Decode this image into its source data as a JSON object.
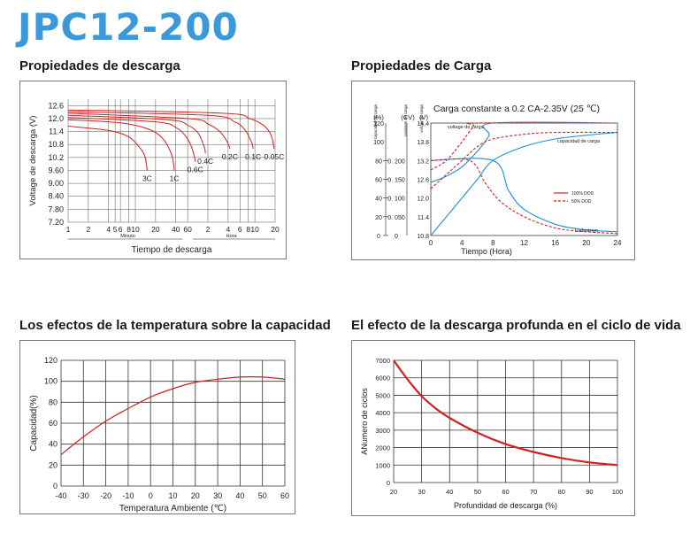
{
  "page": {
    "title": "JPC12-200"
  },
  "headings": {
    "discharge": "Propiedades de descarga",
    "charge": "Propiedades de Carga",
    "temperature": "Los efectos de la temperatura sobre la capacidad",
    "cycle": "El efecto de la descarga profunda en el ciclo de vida"
  },
  "colors": {
    "title": "#3a9ad9",
    "red": "#d42020",
    "blue": "#1f8fd0",
    "grid": "#333333"
  },
  "chart_data": [
    {
      "id": "discharge",
      "type": "line",
      "title": "Propiedades de descarga",
      "ylabel": "Voltage de descarga (V)",
      "xlabel": "Tiempo de descarga",
      "xunit_minutes": "Minuto",
      "xunit_hours": "Hora",
      "yticks": [
        "12.6",
        "12.0",
        "11.4",
        "10.8",
        "10.2",
        "9.60",
        "9.00",
        "8.40",
        "7.80",
        "7.20"
      ],
      "ylim": [
        7.2,
        12.9
      ],
      "xticks": [
        "1",
        "2",
        "4",
        "5",
        "6",
        "8",
        "10",
        "20",
        "40",
        "60",
        "2",
        "4",
        "6",
        "8",
        "10",
        "20"
      ],
      "series": [
        {
          "name": "3C",
          "label": "3C",
          "points": [
            [
              1,
              11.65
            ],
            [
              4,
              11.45
            ],
            [
              8,
              11.15
            ],
            [
              12,
              10.6
            ],
            [
              14,
              10.2
            ],
            [
              15,
              9.6
            ]
          ]
        },
        {
          "name": "1C",
          "label": "1C",
          "points": [
            [
              1,
              11.95
            ],
            [
              6,
              11.8
            ],
            [
              16,
              11.5
            ],
            [
              26,
              11.05
            ],
            [
              34,
              10.4
            ],
            [
              37,
              9.9
            ],
            [
              38,
              9.6
            ]
          ]
        },
        {
          "name": "0.6C",
          "label": "0.6C",
          "points": [
            [
              1,
              12.05
            ],
            [
              20,
              11.85
            ],
            [
              42,
              11.55
            ],
            [
              60,
              11.05
            ],
            [
              70,
              10.6
            ],
            [
              76,
              10.2
            ],
            [
              78,
              10.0
            ]
          ]
        },
        {
          "name": "0.4C",
          "label": "0.4C",
          "points": [
            [
              1,
              12.15
            ],
            [
              30,
              11.95
            ],
            [
              60,
              11.7
            ],
            [
              85,
              11.35
            ],
            [
              100,
              10.9
            ],
            [
              108,
              10.6
            ],
            [
              110,
              10.4
            ]
          ]
        },
        {
          "name": "0.2C",
          "label": "0.2C",
          "points": [
            [
              1,
              12.25
            ],
            [
              60,
              12.0
            ],
            [
              120,
              11.75
            ],
            [
              180,
              11.4
            ],
            [
              225,
              11.0
            ],
            [
              250,
              10.7
            ],
            [
              255,
              10.6
            ]
          ]
        },
        {
          "name": "0.1C",
          "label": "0.1C",
          "points": [
            [
              1,
              12.32
            ],
            [
              120,
              12.15
            ],
            [
              300,
              11.85
            ],
            [
              420,
              11.5
            ],
            [
              500,
              11.1
            ],
            [
              550,
              10.8
            ],
            [
              565,
              10.6
            ]
          ]
        },
        {
          "name": "0.05C",
          "label": "0.05C",
          "points": [
            [
              1,
              12.4
            ],
            [
              200,
              12.25
            ],
            [
              500,
              12.0
            ],
            [
              800,
              11.7
            ],
            [
              1000,
              11.35
            ],
            [
              1100,
              11.0
            ],
            [
              1160,
              10.6
            ]
          ]
        }
      ]
    },
    {
      "id": "charge",
      "type": "line",
      "title": "Carga constante a 0.2 CA-2.35V (25 ℃)",
      "xlabel": "Tiempo (Hora)",
      "xticks": [
        "0",
        "4",
        "8",
        "12",
        "16",
        "20",
        "24"
      ],
      "xlim": [
        0,
        24
      ],
      "axis_headers": [
        "capacidad de carga",
        "corriente de carga",
        "voltaje de carga"
      ],
      "axis_units": [
        "(%)",
        "(CV)",
        "(V)"
      ],
      "capacity_ticks": [
        "120",
        "100",
        "80",
        "60",
        "40",
        "20",
        "0"
      ],
      "current_ticks": [
        "0. 200",
        "0. 150",
        "0. 100",
        "0. 050",
        "0"
      ],
      "voltage_ticks": [
        "14.4",
        "13.8",
        "13.2",
        "12.6",
        "12.0",
        "11.4",
        "10.8"
      ],
      "annotations": {
        "voltage": "voltage de carga",
        "capacity": "capacidad de carga",
        "current": "Ladestrom"
      },
      "legend": [
        "100% DOD",
        "50% DOD"
      ],
      "series": [
        {
          "name": "voltaje 100% DOD",
          "style": "solid",
          "points": [
            [
              0,
              12.5
            ],
            [
              2,
              12.7
            ],
            [
              4,
              13.0
            ],
            [
              6,
              13.5
            ],
            [
              7.5,
              14.0
            ],
            [
              8,
              14.4
            ],
            [
              24,
              14.4
            ]
          ]
        },
        {
          "name": "voltaje 50% DOD",
          "style": "dashed",
          "points": [
            [
              0,
              12.9
            ],
            [
              2,
              13.2
            ],
            [
              4,
              13.8
            ],
            [
              5.5,
              14.3
            ],
            [
              6,
              14.4
            ],
            [
              24,
              14.4
            ]
          ]
        },
        {
          "name": "capacidad 100% DOD",
          "style": "solid",
          "points": [
            [
              0,
              0
            ],
            [
              2,
              20
            ],
            [
              4,
              40
            ],
            [
              6,
              60
            ],
            [
              8,
              80
            ],
            [
              12,
              95
            ],
            [
              16,
              103
            ],
            [
              20,
              107
            ],
            [
              24,
              110
            ]
          ]
        },
        {
          "name": "capacidad 50% DOD",
          "style": "dashed",
          "points": [
            [
              0,
              50
            ],
            [
              2,
              65
            ],
            [
              4,
              80
            ],
            [
              6,
              95
            ],
            [
              8,
              103
            ],
            [
              12,
              108
            ],
            [
              16,
              110
            ],
            [
              24,
              110
            ]
          ]
        },
        {
          "name": "corriente 100% DOD",
          "style": "solid",
          "points": [
            [
              0,
              0.2
            ],
            [
              8,
              0.2
            ],
            [
              10,
              0.12
            ],
            [
              12,
              0.07
            ],
            [
              16,
              0.03
            ],
            [
              20,
              0.015
            ],
            [
              24,
              0.01
            ]
          ]
        },
        {
          "name": "corriente 50% DOD",
          "style": "dashed",
          "points": [
            [
              0,
              0.2
            ],
            [
              5,
              0.2
            ],
            [
              7,
              0.14
            ],
            [
              9,
              0.09
            ],
            [
              12,
              0.05
            ],
            [
              16,
              0.02
            ],
            [
              20,
              0.01
            ],
            [
              24,
              0.005
            ]
          ]
        }
      ]
    },
    {
      "id": "temperature",
      "type": "line",
      "xlabel": "Temperatura Ambiente (℃)",
      "ylabel": "Capacidad(%)",
      "xticks": [
        "-40",
        "-30",
        "-20",
        "-10",
        "0",
        "10",
        "20",
        "30",
        "40",
        "50",
        "60"
      ],
      "yticks": [
        "120",
        "100",
        "80",
        "60",
        "40",
        "20",
        "0"
      ],
      "xlim": [
        -40,
        60
      ],
      "ylim": [
        0,
        120
      ],
      "series": [
        {
          "name": "Capacidad",
          "points": [
            [
              -40,
              30
            ],
            [
              -30,
              47
            ],
            [
              -20,
              62
            ],
            [
              -10,
              74
            ],
            [
              0,
              85
            ],
            [
              10,
              93
            ],
            [
              20,
              99
            ],
            [
              30,
              102
            ],
            [
              40,
              104
            ],
            [
              50,
              104
            ],
            [
              60,
              102
            ]
          ]
        }
      ]
    },
    {
      "id": "cycle",
      "type": "line",
      "xlabel": "Profundidad de descarga (%)",
      "ylabel": "ANumero de ciclos",
      "xticks": [
        "20",
        "30",
        "40",
        "50",
        "60",
        "70",
        "80",
        "90",
        "100"
      ],
      "yticks": [
        "7000",
        "6000",
        "5000",
        "4000",
        "3000",
        "2000",
        "1000",
        "0"
      ],
      "xlim": [
        20,
        100
      ],
      "ylim": [
        0,
        7000
      ],
      "series": [
        {
          "name": "Ciclos",
          "points": [
            [
              20,
              7000
            ],
            [
              25,
              5900
            ],
            [
              30,
              4950
            ],
            [
              35,
              4250
            ],
            [
              40,
              3700
            ],
            [
              50,
              2850
            ],
            [
              60,
              2200
            ],
            [
              70,
              1750
            ],
            [
              80,
              1400
            ],
            [
              90,
              1150
            ],
            [
              100,
              1000
            ]
          ]
        }
      ]
    }
  ]
}
